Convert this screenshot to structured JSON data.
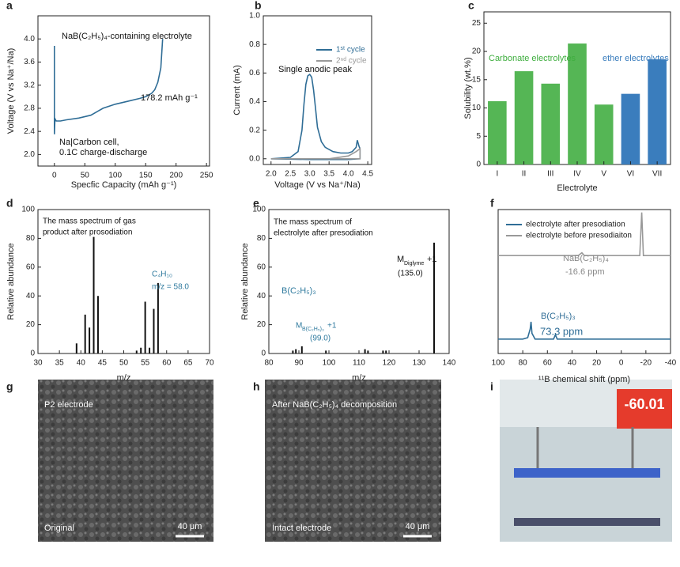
{
  "chart_data": [
    {
      "type": "line",
      "label": "a",
      "x_label": "Specfic Capacity (mAh g⁻¹)",
      "y_label": "Voltage (V vs Na⁺/Na)",
      "xlim": [
        -27,
        255
      ],
      "ylim": [
        1.8,
        4.4
      ],
      "xticks": [
        0,
        50,
        100,
        150,
        200,
        250
      ],
      "yticks": [
        {
          "value": 2,
          "label": "2.0"
        },
        {
          "value": 2.4,
          "label": "2.4"
        },
        {
          "value": 2.8,
          "label": "2.8"
        },
        {
          "value": 3.2,
          "label": "3.2"
        },
        {
          "value": 3.6,
          "label": "3.6"
        },
        {
          "value": 4,
          "label": "4.0"
        }
      ],
      "series": [
        {
          "color": "#2f6d96",
          "x": [
            0,
            0,
            1,
            3,
            10,
            20,
            40,
            60,
            70,
            80,
            100,
            120,
            140,
            150,
            160,
            165,
            170,
            175,
            178
          ],
          "values": [
            3.88,
            2.35,
            2.62,
            2.58,
            2.58,
            2.6,
            2.63,
            2.68,
            2.74,
            2.8,
            2.87,
            2.92,
            2.97,
            3.0,
            3.06,
            3.12,
            3.25,
            3.5,
            4.0
          ]
        }
      ],
      "annotations": [
        "NaB(C₂H₅)₄-containing electrolyte",
        "178.2 mAh g⁻¹",
        "Na|Carbon cell,",
        "0.1C charge-discharge"
      ]
    },
    {
      "type": "line",
      "label": "b",
      "x_label": "Voltage (V vs Na⁺/Na)",
      "y_label": "Current (mA)",
      "xlim": [
        1.8,
        4.6
      ],
      "ylim": [
        -0.04,
        1.0
      ],
      "xticks": [
        {
          "value": 2,
          "label": "2.0"
        },
        2.5,
        {
          "value": 3,
          "label": "3.0"
        },
        3.5,
        {
          "value": 4,
          "label": "4.0"
        },
        4.5
      ],
      "yticks": [
        {
          "value": 0,
          "label": "0.0"
        },
        0.2,
        0.4,
        0.6,
        0.8,
        {
          "value": 1,
          "label": "1.0"
        }
      ],
      "legend": "upper right",
      "series": [
        {
          "name": "1ˢᵗ cycle",
          "color": "#2f6d96",
          "x": [
            2.0,
            2.5,
            2.7,
            2.8,
            2.85,
            2.9,
            2.95,
            3.0,
            3.05,
            3.1,
            3.15,
            3.2,
            3.3,
            3.4,
            3.6,
            3.8,
            4.0,
            4.1,
            4.2,
            4.23,
            4.27,
            4.3,
            4.3,
            4.0,
            3.0,
            2.0
          ],
          "values": [
            0.0,
            0.01,
            0.05,
            0.2,
            0.38,
            0.52,
            0.58,
            0.59,
            0.57,
            0.48,
            0.35,
            0.22,
            0.12,
            0.08,
            0.05,
            0.04,
            0.04,
            0.05,
            0.08,
            0.13,
            0.09,
            0.07,
            0.0,
            -0.005,
            -0.005,
            0.0
          ]
        },
        {
          "name": "2ⁿᵈ cycle",
          "color": "#999999",
          "x": [
            2.0,
            3.0,
            3.5,
            4.0,
            4.2,
            4.3,
            4.3,
            2.0
          ],
          "values": [
            0.0,
            0.0,
            0.0,
            0.02,
            0.05,
            0.07,
            0.0,
            0.0
          ]
        }
      ],
      "annotations": [
        "Single anodic peak"
      ]
    },
    {
      "type": "bar",
      "label": "c",
      "x_label": "Electrolyte",
      "y_label": "Solubility (wt.%)",
      "categories": [
        "I",
        "II",
        "III",
        "IV",
        "V",
        "VI",
        "VII"
      ],
      "values": [
        11.2,
        16.5,
        14.3,
        21.4,
        10.6,
        12.5,
        18.6
      ],
      "colors": [
        "#55b655",
        "#55b655",
        "#55b655",
        "#55b655",
        "#55b655",
        "#3a7dbd",
        "#3a7dbd"
      ],
      "ylim": [
        0,
        27
      ],
      "yticks": [
        0,
        5,
        10,
        15,
        20,
        25
      ],
      "annotations": [
        "Carbonate electrolytes",
        "ether electrolytes"
      ]
    },
    {
      "type": "stem",
      "label": "d",
      "x_label": "m/z",
      "y_label": "Relative abundance",
      "xlim": [
        30,
        70
      ],
      "ylim": [
        0,
        100
      ],
      "xticks": [
        30,
        35,
        40,
        45,
        50,
        55,
        60,
        65,
        70
      ],
      "yticks": [
        0,
        20,
        40,
        60,
        80,
        100
      ],
      "series": [
        {
          "color": "#111111",
          "x": [
            39,
            41,
            42,
            43,
            44,
            53,
            54,
            55,
            56,
            57,
            58
          ],
          "values": [
            7,
            27,
            18,
            81,
            40,
            2,
            4,
            36,
            4,
            31,
            49
          ]
        }
      ],
      "annotations": [
        "The mass spectrum of gas",
        "product after prosodiation",
        "C₄H₁₀",
        "m/z = 58.0"
      ]
    },
    {
      "type": "stem",
      "label": "e",
      "x_label": "m/z",
      "y_label": "Relative abundance",
      "xlim": [
        80,
        140
      ],
      "ylim": [
        0,
        100
      ],
      "xticks": [
        80,
        90,
        100,
        110,
        120,
        130,
        140
      ],
      "yticks": [
        0,
        20,
        40,
        60,
        80,
        100
      ],
      "series": [
        {
          "color": "#111111",
          "x": [
            88,
            89,
            91,
            99,
            112,
            113,
            118,
            119,
            135
          ],
          "values": [
            2,
            3,
            5,
            2,
            3,
            2,
            2,
            2,
            77
          ]
        }
      ],
      "annotations": [
        "The mass spectrum of",
        "electrolyte after presodiation",
        "B(C₂H₅)₃",
        "M",
        "Diglyme",
        "+1",
        "(135.0)",
        "M",
        "B(C₂H₅)₃",
        "+1",
        "(99.0)"
      ]
    },
    {
      "type": "line",
      "label": "f",
      "x_label": "¹¹B chemical shift (ppm)",
      "xlim": [
        100,
        -40
      ],
      "ylim": [
        0,
        1
      ],
      "xticks": [
        100,
        80,
        60,
        40,
        20,
        0,
        -20,
        -40
      ],
      "legend": "upper left",
      "series": [
        {
          "name": "electrolyte after presodiation",
          "color": "#2f6d96",
          "x": [
            100,
            80,
            76,
            74,
            73.3,
            72.5,
            70,
            55,
            53.5,
            52,
            30,
            0,
            -20,
            -40
          ],
          "values": [
            0.1,
            0.1,
            0.11,
            0.17,
            0.22,
            0.14,
            0.1,
            0.1,
            0.13,
            0.1,
            0.1,
            0.1,
            0.1,
            0.1
          ]
        },
        {
          "name": "electrolyte before presodiaiton",
          "color": "#999999",
          "x": [
            100,
            35,
            32,
            30,
            0,
            -15,
            -16.6,
            -18,
            -40
          ],
          "values": [
            0.68,
            0.68,
            0.7,
            0.68,
            0.68,
            0.68,
            0.98,
            0.68,
            0.68
          ]
        }
      ],
      "annotations": [
        "NaB(C₂H₅)₄",
        "-16.6 ppm",
        "B(C₂H₅)₃",
        "73.3 ppm"
      ]
    }
  ],
  "images": [
    {
      "label": "g",
      "texts": [
        "P2 electrode",
        "Original",
        "40 μm"
      ]
    },
    {
      "label": "h",
      "texts": [
        "After NaB(C₂H₅)₄ decomposition",
        "Intact electrode",
        "40 μm"
      ]
    },
    {
      "label": "i",
      "texts": [
        "-60.01"
      ]
    }
  ]
}
